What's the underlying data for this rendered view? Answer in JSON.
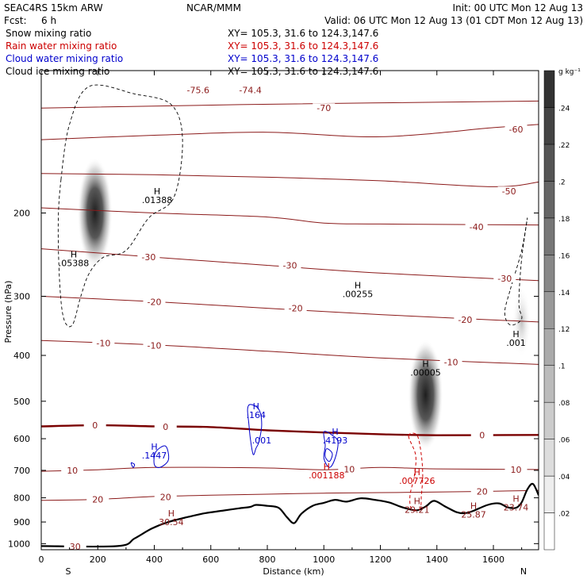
{
  "header": {
    "model": "SEAC4RS 15km ARW",
    "center": "NCAR/MMM",
    "init": "Init: 00 UTC Mon 12 Aug 13",
    "fcst_label": "Fcst:",
    "fcst_value": "6 h",
    "valid": "Valid: 06 UTC Mon 12 Aug 13 (01 CDT Mon 12 Aug 13)",
    "field_lines": [
      {
        "name": "Snow mixing ratio",
        "xy": "XY= 105.3, 31.6 to 124.3,147.6",
        "color": "#000000"
      },
      {
        "name": "Rain water mixing ratio",
        "xy": "XY= 105.3, 31.6 to 124.3,147.6",
        "color": "#cc0000"
      },
      {
        "name": "Cloud water mixing ratio",
        "xy": "XY= 105.3, 31.6 to 124.3,147.6",
        "color": "#0000cc"
      },
      {
        "name": "Cloud ice mixing ratio",
        "xy": "XY= 105.3, 31.6 to 124.3,147.6",
        "color": "#000000"
      }
    ]
  },
  "colorbar": {
    "unit": "g kg⁻¹",
    "ticks": [
      ".02",
      ".04",
      ".06",
      ".08",
      ".1",
      ".12",
      ".14",
      ".16",
      ".18",
      ".2",
      ".22",
      ".24"
    ]
  },
  "chart_data": {
    "type": "cross-section contour",
    "xlabel": "Distance (km)",
    "ylabel": "Pressure (hPa)",
    "xlim": [
      0,
      1760
    ],
    "ylim": [
      1030,
      100
    ],
    "y_scale": "log",
    "x_ticks": [
      0,
      200,
      400,
      600,
      800,
      1000,
      1200,
      1400,
      1600
    ],
    "y_ticks": [
      200,
      300,
      400,
      500,
      600,
      700,
      800,
      900,
      1000
    ],
    "x_end_labels": {
      "left": "S",
      "right": "N"
    },
    "colors": {
      "temperature": "#8b1a1a",
      "zero_isotherm": "#7a0000",
      "terrain": "#000000",
      "rain": "#cc0000",
      "cloud_water": "#0000cc",
      "cloud_ice": "#000000"
    },
    "terrain": [
      [
        0,
        1012
      ],
      [
        270,
        1012
      ],
      [
        330,
        975
      ],
      [
        390,
        930
      ],
      [
        450,
        900
      ],
      [
        520,
        878
      ],
      [
        580,
        862
      ],
      [
        640,
        852
      ],
      [
        700,
        842
      ],
      [
        740,
        836
      ],
      [
        760,
        828
      ],
      [
        800,
        832
      ],
      [
        840,
        840
      ],
      [
        870,
        880
      ],
      [
        895,
        905
      ],
      [
        920,
        865
      ],
      [
        960,
        832
      ],
      [
        1000,
        820
      ],
      [
        1040,
        808
      ],
      [
        1080,
        815
      ],
      [
        1130,
        802
      ],
      [
        1180,
        808
      ],
      [
        1230,
        818
      ],
      [
        1270,
        835
      ],
      [
        1300,
        845
      ],
      [
        1330,
        850
      ],
      [
        1360,
        835
      ],
      [
        1390,
        812
      ],
      [
        1430,
        835
      ],
      [
        1470,
        858
      ],
      [
        1500,
        862
      ],
      [
        1530,
        852
      ],
      [
        1580,
        828
      ],
      [
        1620,
        822
      ],
      [
        1650,
        838
      ],
      [
        1680,
        840
      ],
      [
        1700,
        818
      ],
      [
        1720,
        768
      ],
      [
        1740,
        748
      ],
      [
        1760,
        790
      ]
    ],
    "isotherms": [
      {
        "label": "-70",
        "is_zero": false,
        "points": [
          [
            0,
            120
          ],
          [
            700,
            118
          ],
          [
            1760,
            116
          ]
        ]
      },
      {
        "label": "-60",
        "is_zero": false,
        "points": [
          [
            0,
            140
          ],
          [
            400,
            137
          ],
          [
            800,
            135
          ],
          [
            1200,
            138
          ],
          [
            1600,
            132
          ],
          [
            1760,
            130
          ]
        ]
      },
      {
        "label": "-50",
        "is_zero": false,
        "points": [
          [
            0,
            165
          ],
          [
            400,
            166
          ],
          [
            800,
            168
          ],
          [
            1200,
            171
          ],
          [
            1600,
            176
          ],
          [
            1760,
            172
          ]
        ]
      },
      {
        "label": "-40",
        "is_zero": false,
        "points": [
          [
            0,
            195
          ],
          [
            400,
            200
          ],
          [
            800,
            204
          ],
          [
            1000,
            210
          ],
          [
            1200,
            211
          ],
          [
            1760,
            212
          ]
        ]
      },
      {
        "label": "-30",
        "is_zero": false,
        "points": [
          [
            0,
            238
          ],
          [
            400,
            248
          ],
          [
            800,
            258
          ],
          [
            1200,
            268
          ],
          [
            1760,
            278
          ]
        ]
      },
      {
        "label": "-20",
        "is_zero": false,
        "points": [
          [
            0,
            300
          ],
          [
            400,
            308
          ],
          [
            800,
            318
          ],
          [
            1200,
            328
          ],
          [
            1760,
            340
          ]
        ]
      },
      {
        "label": "-10",
        "is_zero": false,
        "points": [
          [
            0,
            372
          ],
          [
            400,
            380
          ],
          [
            800,
            392
          ],
          [
            1200,
            405
          ],
          [
            1760,
            418
          ]
        ]
      },
      {
        "label": "0",
        "is_zero": true,
        "points": [
          [
            0,
            565
          ],
          [
            200,
            562
          ],
          [
            400,
            565
          ],
          [
            600,
            567
          ],
          [
            800,
            576
          ],
          [
            1000,
            582
          ],
          [
            1200,
            587
          ],
          [
            1400,
            590
          ],
          [
            1760,
            589
          ]
        ]
      },
      {
        "label": "10",
        "is_zero": false,
        "points": [
          [
            0,
            703
          ],
          [
            200,
            698
          ],
          [
            400,
            690
          ],
          [
            800,
            692
          ],
          [
            1000,
            698
          ],
          [
            1200,
            690
          ],
          [
            1400,
            695
          ],
          [
            1760,
            697
          ]
        ]
      },
      {
        "label": "20",
        "is_zero": false,
        "points": [
          [
            0,
            810
          ],
          [
            200,
            806
          ],
          [
            400,
            795
          ],
          [
            600,
            790
          ],
          [
            800,
            786
          ],
          [
            1000,
            782
          ],
          [
            1200,
            780
          ],
          [
            1400,
            778
          ],
          [
            1760,
            772
          ]
        ]
      }
    ],
    "isotherm_labels": [
      {
        "text": "-75.6",
        "x": 555,
        "p": 110
      },
      {
        "text": "-74.4",
        "x": 740,
        "p": 110
      },
      {
        "text": "-70",
        "x": 1000,
        "p": 120
      },
      {
        "text": "-60",
        "x": 1680,
        "p": 133
      },
      {
        "text": "-50",
        "x": 1655,
        "p": 180
      },
      {
        "text": "-40",
        "x": 1540,
        "p": 214
      },
      {
        "text": "-30",
        "x": 380,
        "p": 248
      },
      {
        "text": "-30",
        "x": 880,
        "p": 258
      },
      {
        "text": "-30",
        "x": 1640,
        "p": 275
      },
      {
        "text": "-20",
        "x": 400,
        "p": 308
      },
      {
        "text": "-20",
        "x": 900,
        "p": 318
      },
      {
        "text": "-20",
        "x": 1500,
        "p": 336
      },
      {
        "text": "-10",
        "x": 220,
        "p": 377
      },
      {
        "text": "-10",
        "x": 400,
        "p": 381
      },
      {
        "text": "-10",
        "x": 1450,
        "p": 413
      },
      {
        "text": "0",
        "x": 190,
        "p": 562
      },
      {
        "text": "0",
        "x": 440,
        "p": 566
      },
      {
        "text": "0",
        "x": 1560,
        "p": 589
      },
      {
        "text": "10",
        "x": 110,
        "p": 700
      },
      {
        "text": "10",
        "x": 1090,
        "p": 696
      },
      {
        "text": "10",
        "x": 1680,
        "p": 697
      },
      {
        "text": "20",
        "x": 200,
        "p": 806
      },
      {
        "text": "20",
        "x": 440,
        "p": 797
      },
      {
        "text": "20",
        "x": 1560,
        "p": 775
      },
      {
        "text": "30",
        "x": 120,
        "p": 1015
      }
    ],
    "snow_cores": [
      {
        "x": 190,
        "p": 200,
        "amount": 0.24
      },
      {
        "x": 1360,
        "p": 485,
        "amount": 0.24
      },
      {
        "x": 1700,
        "p": 340,
        "amount": 0.06
      }
    ],
    "ice_contours": [
      {
        "label": ".001",
        "points": [
          [
            70,
            170
          ],
          [
            100,
            130
          ],
          [
            170,
            108
          ],
          [
            330,
            112
          ],
          [
            460,
            118
          ],
          [
            500,
            140
          ],
          [
            470,
            185
          ],
          [
            380,
            205
          ],
          [
            300,
            240
          ],
          [
            220,
            248
          ],
          [
            170,
            268
          ],
          [
            140,
            300
          ],
          [
            110,
            345
          ],
          [
            80,
            335
          ],
          [
            65,
            280
          ],
          [
            60,
            210
          ]
        ]
      },
      {
        "label": ".001",
        "points": [
          [
            1660,
            290
          ],
          [
            1700,
            240
          ],
          [
            1720,
            205
          ],
          [
            1700,
            250
          ],
          [
            1690,
            310
          ],
          [
            1700,
            335
          ],
          [
            1660,
            345
          ],
          [
            1640,
            325
          ]
        ]
      }
    ],
    "cloud_water_contours": [
      {
        "points": [
          [
            405,
            640
          ],
          [
            440,
            622
          ],
          [
            450,
            665
          ],
          [
            420,
            690
          ],
          [
            400,
            680
          ]
        ]
      },
      {
        "points": [
          [
            740,
            508
          ],
          [
            770,
            520
          ],
          [
            780,
            560
          ],
          [
            770,
            610
          ],
          [
            760,
            628
          ],
          [
            750,
            648
          ],
          [
            740,
            600
          ],
          [
            735,
            560
          ],
          [
            730,
            520
          ]
        ]
      },
      {
        "points": [
          [
            1000,
            580
          ],
          [
            1030,
            590
          ],
          [
            1050,
            610
          ],
          [
            1040,
            660
          ],
          [
            1020,
            690
          ],
          [
            1000,
            660
          ],
          [
            1005,
            620
          ]
        ]
      },
      {
        "points": [
          [
            1010,
            630
          ],
          [
            1030,
            645
          ],
          [
            1020,
            670
          ],
          [
            1005,
            655
          ]
        ]
      },
      {
        "points": [
          [
            318,
            675
          ],
          [
            330,
            680
          ],
          [
            325,
            690
          ]
        ]
      }
    ],
    "rain_contours": [
      {
        "points": [
          [
            1300,
            592
          ],
          [
            1325,
            650
          ],
          [
            1320,
            720
          ],
          [
            1305,
            790
          ],
          [
            1310,
            845
          ],
          [
            1340,
            845
          ],
          [
            1345,
            790
          ],
          [
            1350,
            720
          ],
          [
            1345,
            650
          ],
          [
            1330,
            590
          ]
        ]
      }
    ],
    "maxima": [
      {
        "h": "H",
        "value": ".05388",
        "x": 115,
        "p": 258,
        "color": "#000000"
      },
      {
        "h": "H",
        "value": ".01388",
        "x": 410,
        "p": 190,
        "color": "#000000"
      },
      {
        "h": "H",
        "value": ".00255",
        "x": 1120,
        "p": 300,
        "color": "#000000"
      },
      {
        "h": "H",
        "value": ".00005",
        "x": 1360,
        "p": 440,
        "color": "#000000"
      },
      {
        "h": "H",
        "value": ".001",
        "x": 1680,
        "p": 380,
        "color": "#000000"
      },
      {
        "h": "H",
        "value": ".1447",
        "x": 400,
        "p": 658,
        "color": "#0000cc"
      },
      {
        "h": "H",
        "value": ".164",
        "x": 760,
        "p": 540,
        "color": "#0000cc"
      },
      {
        "h": "",
        "value": ".001",
        "x": 780,
        "p": 612,
        "color": "#0000cc"
      },
      {
        "h": "H",
        "value": ".4193",
        "x": 1040,
        "p": 612,
        "color": "#0000cc"
      },
      {
        "h": "H",
        "value": ".001188",
        "x": 1010,
        "p": 725,
        "color": "#cc0000"
      },
      {
        "h": "H",
        "value": ".007726",
        "x": 1330,
        "p": 745,
        "color": "#cc0000"
      },
      {
        "h": "H",
        "value": "29.21",
        "x": 1330,
        "p": 858,
        "color": "#8b1a1a"
      },
      {
        "h": "H",
        "value": "25.87",
        "x": 1530,
        "p": 878,
        "color": "#8b1a1a"
      },
      {
        "h": "H",
        "value": "23.74",
        "x": 1680,
        "p": 848,
        "color": "#8b1a1a"
      },
      {
        "h": "H",
        "value": "30.54",
        "x": 460,
        "p": 910,
        "color": "#8b1a1a"
      }
    ]
  }
}
